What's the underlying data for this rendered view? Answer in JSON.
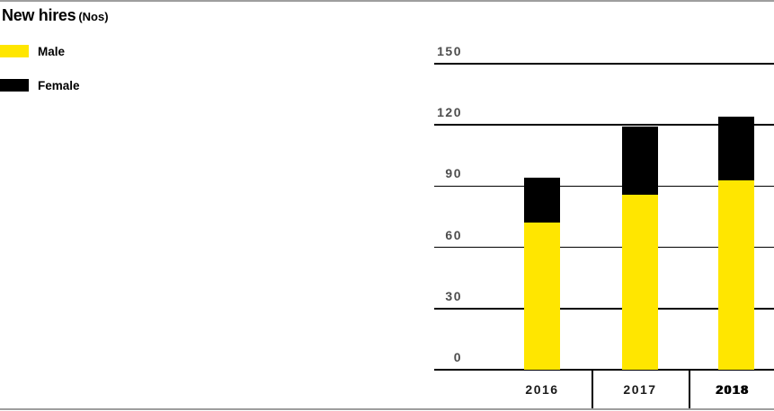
{
  "header": {
    "title": "New hires",
    "unit": "(Nos)"
  },
  "legend": {
    "items": [
      {
        "label": "Male",
        "color": "#FFE600"
      },
      {
        "label": "Female",
        "color": "#000000"
      }
    ]
  },
  "chart_data": {
    "type": "bar",
    "stacked": true,
    "title": "New hires (Nos)",
    "categories": [
      "2016",
      "2017",
      "2018"
    ],
    "series": [
      {
        "name": "Male",
        "color": "#FFE600",
        "values": [
          72,
          86,
          93
        ]
      },
      {
        "name": "Female",
        "color": "#000000",
        "values": [
          22,
          33,
          31
        ]
      }
    ],
    "ylim": [
      0,
      150
    ],
    "yticks": [
      0,
      30,
      60,
      90,
      120,
      150
    ],
    "grid": true,
    "legend_position": "left",
    "xlabel": "",
    "ylabel": "",
    "bold_category": "2018"
  },
  "colors": {
    "male": "#FFE600",
    "female": "#000000",
    "tick_label": "#4d4d4d",
    "gridline": "#000000",
    "page_border": "#9e9e9e"
  }
}
